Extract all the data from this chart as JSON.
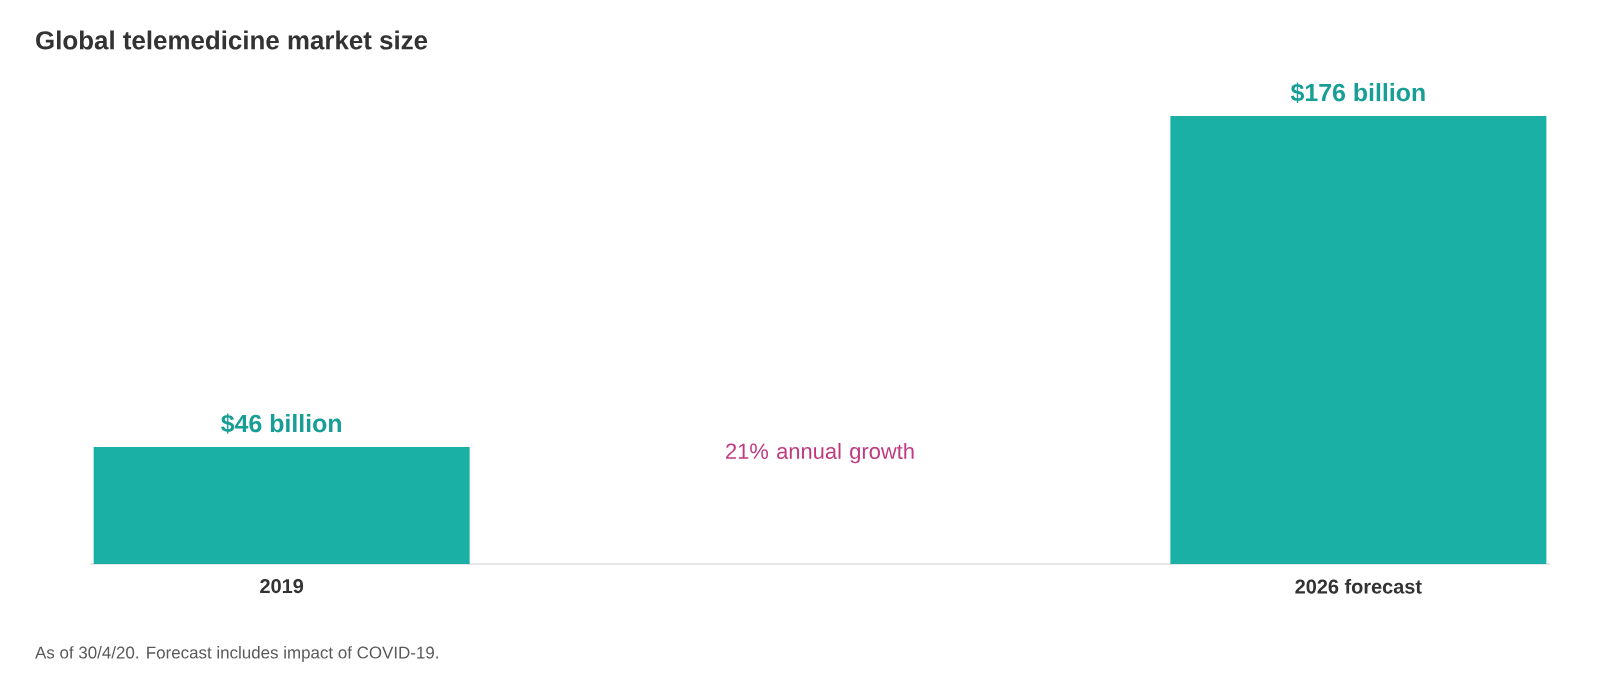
{
  "chart_data": {
    "type": "bar",
    "title": "Global telemedicine market size",
    "categories": [
      "2019",
      "2026 forecast"
    ],
    "values": [
      46,
      176
    ],
    "value_labels": [
      "$46 billion",
      "$176 billion"
    ],
    "color": "#1ab0a6",
    "annotations": [
      "21% annual growth",
      "As of 30/4/20. Forecast includes impact of COVID-19."
    ]
  }
}
